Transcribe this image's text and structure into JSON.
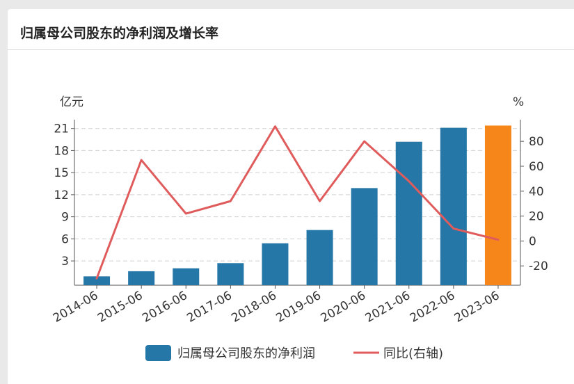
{
  "title": "归属母公司股东的净利润及增长率",
  "colors": {
    "bar": "#2477a6",
    "bar_highlight": "#f7861a",
    "line": "#e05c5c",
    "grid": "#d0d0d0",
    "axis": "#555555",
    "page_bg": "#e9e9e9",
    "card_bg": "#ffffff"
  },
  "chart_data": {
    "type": "bar",
    "categories": [
      "2014-06",
      "2015-06",
      "2016-06",
      "2017-06",
      "2018-06",
      "2019-06",
      "2020-06",
      "2021-06",
      "2022-06",
      "2023-06"
    ],
    "series": [
      {
        "name": "归属母公司股东的净利润",
        "type": "bar",
        "axis": "left",
        "values": [
          0.9,
          1.6,
          2.0,
          2.7,
          5.4,
          7.2,
          12.9,
          19.2,
          21.1,
          21.4
        ],
        "highlight_last": true
      },
      {
        "name": "同比(右轴)",
        "type": "line",
        "axis": "right",
        "values": [
          -30,
          65,
          22,
          32,
          92,
          32,
          80,
          48,
          10,
          1
        ]
      }
    ],
    "y_left": {
      "unit": "亿元",
      "ticks": [
        3,
        6,
        9,
        12,
        15,
        18,
        21
      ],
      "range": [
        -0.3,
        22.2
      ]
    },
    "y_right": {
      "unit": "%",
      "ticks": [
        -20,
        0,
        20,
        40,
        60,
        80
      ],
      "range": [
        -35.5,
        97.4
      ]
    },
    "grid": true,
    "legend_position": "bottom-center"
  }
}
